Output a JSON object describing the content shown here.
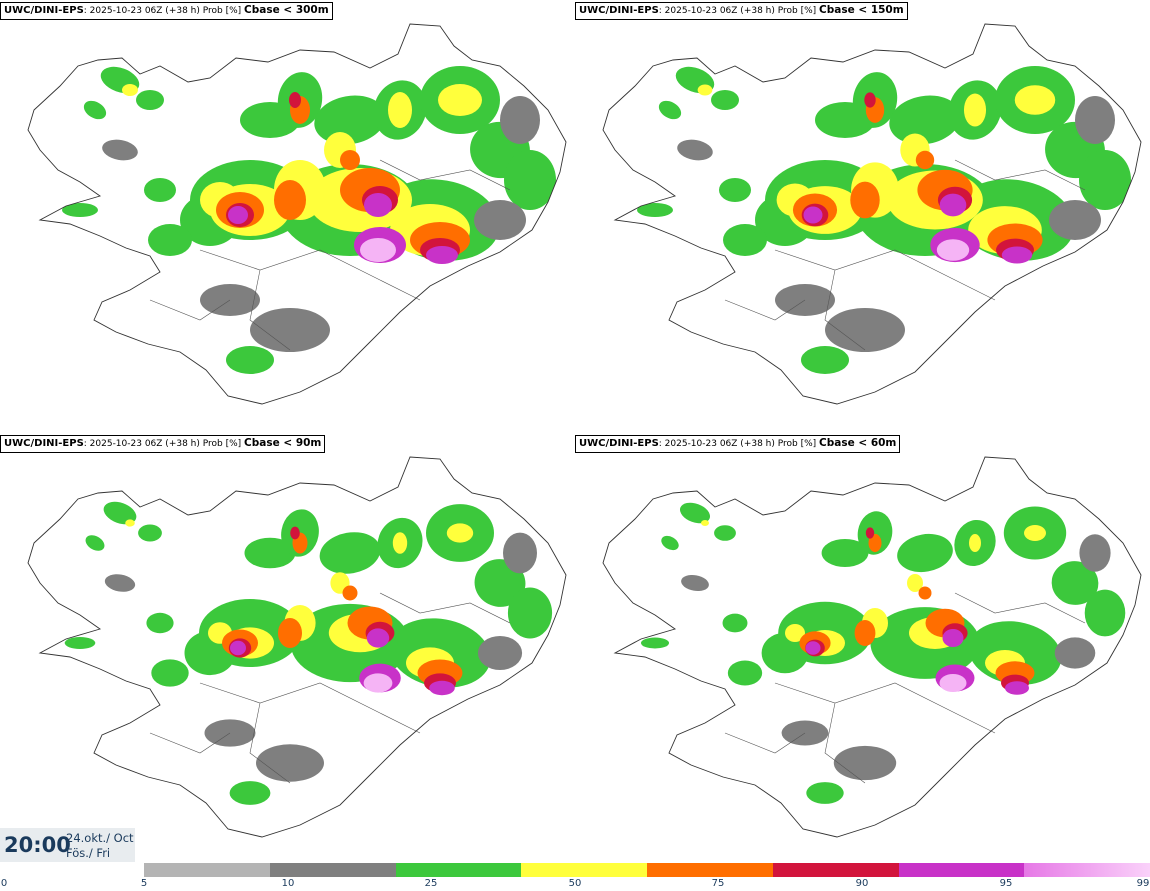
{
  "panels": [
    {
      "model": "UWC/DINI-EPS",
      "info": ": 2025-10-23 06Z (+38 h) Prob [%] ",
      "threshold": "Cbase < 300m"
    },
    {
      "model": "UWC/DINI-EPS",
      "info": ": 2025-10-23 06Z (+38 h) Prob [%] ",
      "threshold": "Cbase < 150m"
    },
    {
      "model": "UWC/DINI-EPS",
      "info": ": 2025-10-23 06Z (+38 h) Prob [%] ",
      "threshold": "Cbase < 90m"
    },
    {
      "model": "UWC/DINI-EPS",
      "info": ": 2025-10-23 06Z (+38 h) Prob [%] ",
      "threshold": "Cbase < 60m"
    }
  ],
  "valid_time": {
    "clock": "20:00",
    "date_line": "24.okt./ Oct",
    "day_line": "Fös./ Fri"
  },
  "colorbar": {
    "ticks": [
      "0",
      "5",
      "10",
      "25",
      "50",
      "75",
      "90",
      "95",
      "99"
    ],
    "colors": [
      "#b4b4b4",
      "#7f7f7f",
      "#3cc83c",
      "#ffff3c",
      "#ff6e00",
      "#d2143c",
      "#c832c8",
      "#f5b4f5"
    ]
  }
}
